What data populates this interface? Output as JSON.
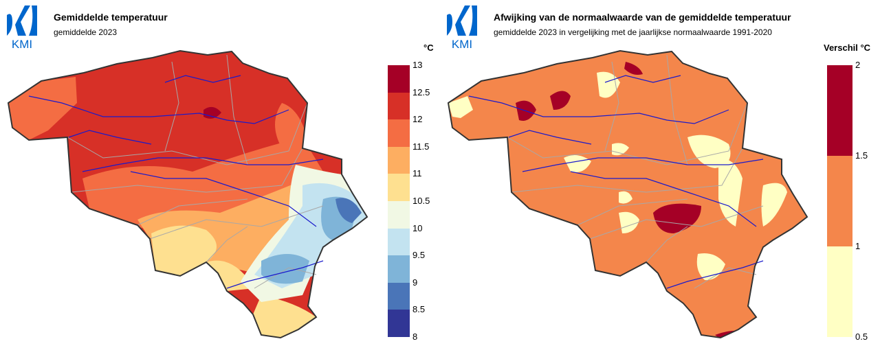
{
  "logo": {
    "text": "KMI",
    "color": "#0066cc"
  },
  "maps": [
    {
      "title": "Gemiddelde temperatuur",
      "subtitle": "gemiddelde 2023",
      "unit": "°C",
      "legend": {
        "bins": [
          {
            "from": 12.5,
            "to": 13,
            "color": "#a50026"
          },
          {
            "from": 12,
            "to": 12.5,
            "color": "#d73027"
          },
          {
            "from": 11.5,
            "to": 12,
            "color": "#f46d43"
          },
          {
            "from": 11,
            "to": 11.5,
            "color": "#fdae61"
          },
          {
            "from": 10.5,
            "to": 11,
            "color": "#fee090"
          },
          {
            "from": 10,
            "to": 10.5,
            "color": "#f1f8e4"
          },
          {
            "from": 9.5,
            "to": 10,
            "color": "#c3e3f0"
          },
          {
            "from": 9,
            "to": 9.5,
            "color": "#7fb4d8"
          },
          {
            "from": 8.5,
            "to": 9,
            "color": "#4a75b8"
          },
          {
            "from": 8,
            "to": 8.5,
            "color": "#313695"
          }
        ],
        "ticks": [
          "13",
          "12.5",
          "12",
          "11.5",
          "11",
          "10.5",
          "10",
          "9.5",
          "9",
          "8.5",
          "8"
        ]
      }
    },
    {
      "title": "Afwijking van de normaalwaarde van de gemiddelde temperatuur",
      "subtitle": "gemiddelde 2023 in vergelijking met de jaarlijkse normaalwaarde 1991-2020",
      "unit": "Verschil °C",
      "legend": {
        "bins": [
          {
            "from": 1.5,
            "to": 2,
            "color": "#a50026"
          },
          {
            "from": 1,
            "to": 1.5,
            "color": "#f4864b"
          },
          {
            "from": 0.5,
            "to": 1,
            "color": "#ffffc4"
          }
        ],
        "ticks": [
          "2",
          "1.5",
          "1",
          "0.5"
        ]
      }
    }
  ],
  "colors": {
    "river": "#1a1acc",
    "province_border": "#a8a8a8",
    "country_border": "#333333"
  }
}
